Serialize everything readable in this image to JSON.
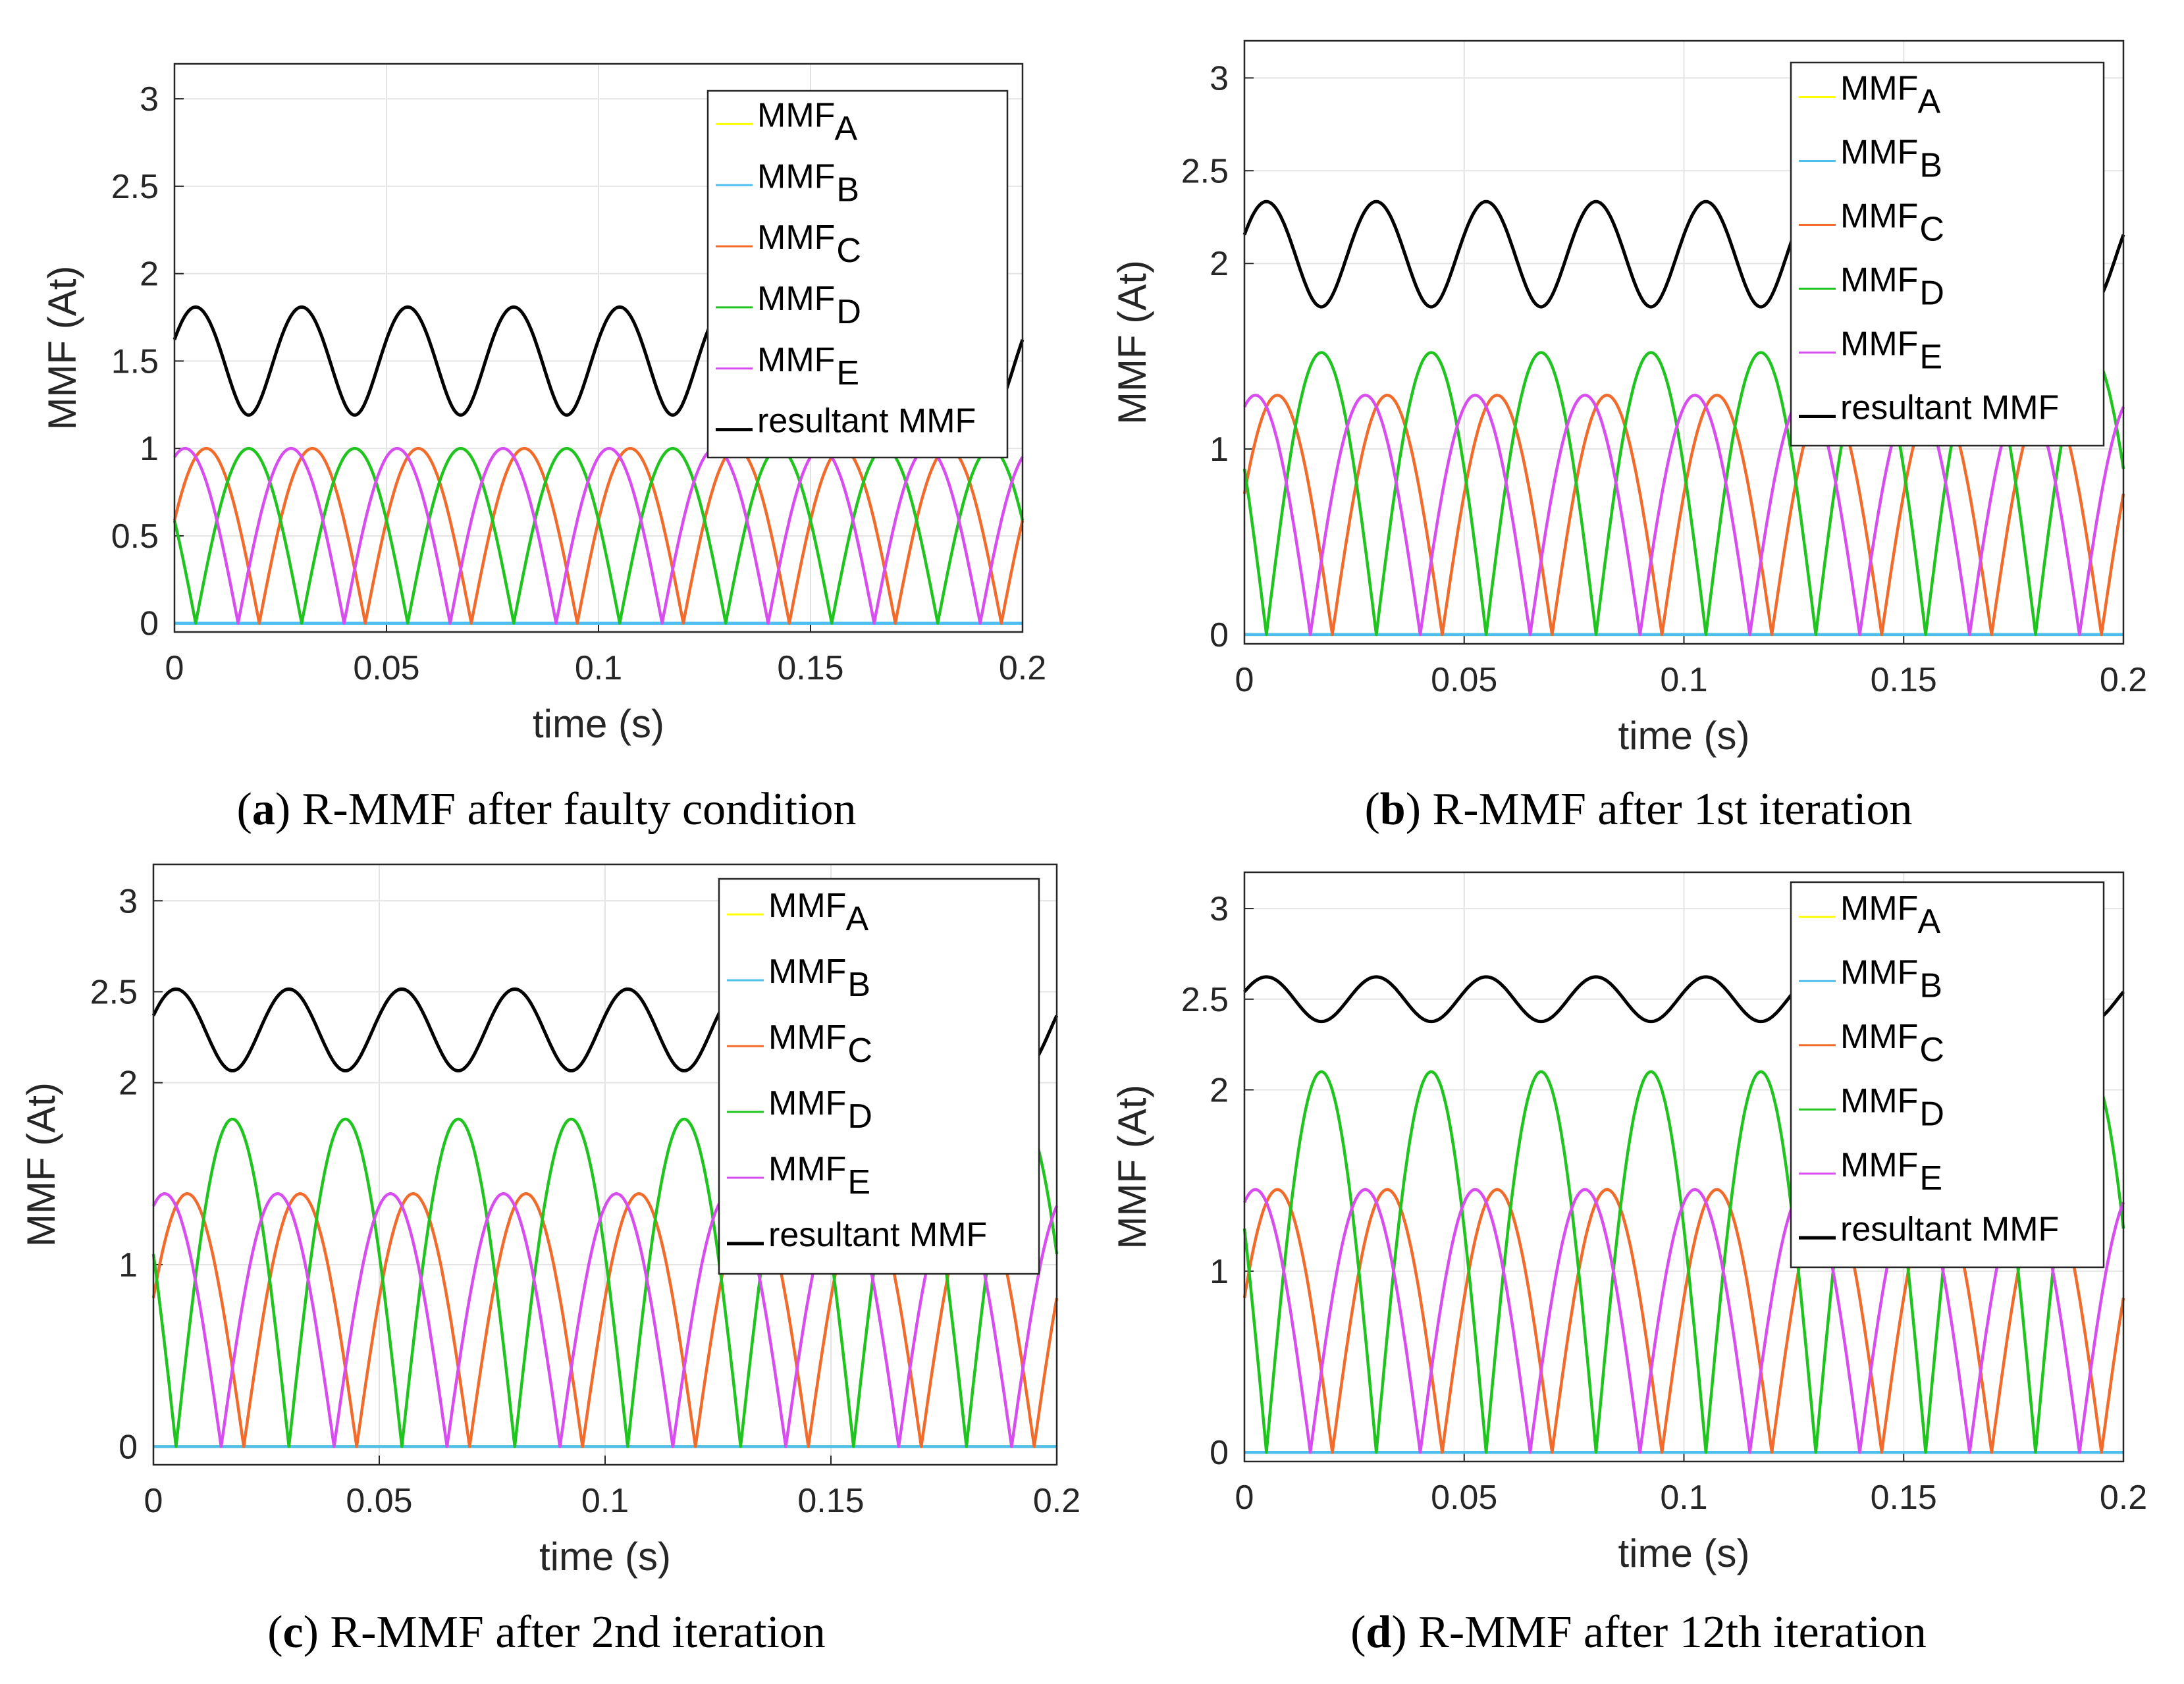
{
  "chart_data": [
    {
      "type": "line",
      "panel_letter": "a",
      "caption": "R-MMF after faulty condition",
      "xlabel": "time (s)",
      "ylabel": "MMF (At)",
      "xlim": [
        0,
        0.2
      ],
      "ylim": [
        -0.05,
        3.2
      ],
      "xticks": [
        "0",
        "0.05",
        "0.1",
        "0.15",
        "0.2"
      ],
      "yticks": [
        "0",
        "0.5",
        "1",
        "1.5",
        "2",
        "2.5",
        "3"
      ],
      "grid": true,
      "legend_position": "top-right",
      "frequency_hz": 20,
      "series": [
        {
          "name": "MMF",
          "subscript": "A",
          "color": "#FFFF00",
          "amplitude": 0,
          "phase_deg": 0
        },
        {
          "name": "MMF",
          "subscript": "B",
          "color": "#4DBEEE",
          "amplitude": 0,
          "phase_deg": -72
        },
        {
          "name": "MMF",
          "subscript": "C",
          "color": "#F26B2A",
          "amplitude": 1.0,
          "phase_deg": -144
        },
        {
          "name": "MMF",
          "subscript": "D",
          "color": "#1FC41F",
          "amplitude": 1.0,
          "phase_deg": -216
        },
        {
          "name": "MMF",
          "subscript": "E",
          "color": "#D84DF0",
          "amplitude": 1.0,
          "phase_deg": -288
        },
        {
          "name": "resultant MMF",
          "subscript": "",
          "color": "#000000",
          "resultant": true
        }
      ]
    },
    {
      "type": "line",
      "panel_letter": "b",
      "caption": "R-MMF after 1st iteration",
      "xlabel": "time (s)",
      "ylabel": "MMF (At)",
      "xlim": [
        0,
        0.2
      ],
      "ylim": [
        -0.05,
        3.2
      ],
      "xticks": [
        "0",
        "0.05",
        "0.1",
        "0.15",
        "0.2"
      ],
      "yticks": [
        "0",
        "1",
        "2",
        "2.5",
        "3"
      ],
      "grid": true,
      "legend_position": "top-right",
      "frequency_hz": 20,
      "series": [
        {
          "name": "MMF",
          "subscript": "A",
          "color": "#FFFF00",
          "amplitude": 0,
          "phase_deg": 0
        },
        {
          "name": "MMF",
          "subscript": "B",
          "color": "#4DBEEE",
          "amplitude": 0,
          "phase_deg": -72
        },
        {
          "name": "MMF",
          "subscript": "C",
          "color": "#F26B2A",
          "amplitude": 1.29,
          "phase_deg": -144
        },
        {
          "name": "MMF",
          "subscript": "D",
          "color": "#1FC41F",
          "amplitude": 1.52,
          "phase_deg": -216
        },
        {
          "name": "MMF",
          "subscript": "E",
          "color": "#D84DF0",
          "amplitude": 1.29,
          "phase_deg": -288
        },
        {
          "name": "resultant MMF",
          "subscript": "",
          "color": "#000000",
          "resultant": true
        }
      ]
    },
    {
      "type": "line",
      "panel_letter": "c",
      "caption": "R-MMF after 2nd iteration",
      "xlabel": "time (s)",
      "ylabel": "MMF (At)",
      "xlim": [
        0,
        0.2
      ],
      "ylim": [
        -0.1,
        3.2
      ],
      "xticks": [
        "0",
        "0.05",
        "0.1",
        "0.15",
        "0.2"
      ],
      "yticks": [
        "0",
        "1",
        "2",
        "2.5",
        "3"
      ],
      "grid": true,
      "legend_position": "top-right",
      "frequency_hz": 20,
      "series": [
        {
          "name": "MMF",
          "subscript": "A",
          "color": "#FFFF00",
          "amplitude": 0,
          "phase_deg": 0
        },
        {
          "name": "MMF",
          "subscript": "B",
          "color": "#4DBEEE",
          "amplitude": 0,
          "phase_deg": -72
        },
        {
          "name": "MMF",
          "subscript": "C",
          "color": "#F26B2A",
          "amplitude": 1.39,
          "phase_deg": -144
        },
        {
          "name": "MMF",
          "subscript": "D",
          "color": "#1FC41F",
          "amplitude": 1.8,
          "phase_deg": -216
        },
        {
          "name": "MMF",
          "subscript": "E",
          "color": "#D84DF0",
          "amplitude": 1.39,
          "phase_deg": -288
        },
        {
          "name": "resultant MMF",
          "subscript": "",
          "color": "#000000",
          "resultant": true
        }
      ]
    },
    {
      "type": "line",
      "panel_letter": "d",
      "caption": "R-MMF after 12th iteration",
      "xlabel": "time (s)",
      "ylabel": "MMF (At)",
      "xlim": [
        0,
        0.2
      ],
      "ylim": [
        -0.05,
        3.2
      ],
      "xticks": [
        "0",
        "0.05",
        "0.1",
        "0.15",
        "0.2"
      ],
      "yticks": [
        "0",
        "1",
        "2",
        "2.5",
        "3"
      ],
      "grid": true,
      "legend_position": "top-right",
      "frequency_hz": 20,
      "series": [
        {
          "name": "MMF",
          "subscript": "A",
          "color": "#FFFF00",
          "amplitude": 0,
          "phase_deg": 0
        },
        {
          "name": "MMF",
          "subscript": "B",
          "color": "#4DBEEE",
          "amplitude": 0,
          "phase_deg": -72
        },
        {
          "name": "MMF",
          "subscript": "C",
          "color": "#F26B2A",
          "amplitude": 1.45,
          "phase_deg": -144
        },
        {
          "name": "MMF",
          "subscript": "D",
          "color": "#1FC41F",
          "amplitude": 2.1,
          "phase_deg": -216
        },
        {
          "name": "MMF",
          "subscript": "E",
          "color": "#D84DF0",
          "amplitude": 1.45,
          "phase_deg": -288
        },
        {
          "name": "resultant MMF",
          "subscript": "",
          "color": "#000000",
          "resultant": true
        }
      ]
    }
  ]
}
